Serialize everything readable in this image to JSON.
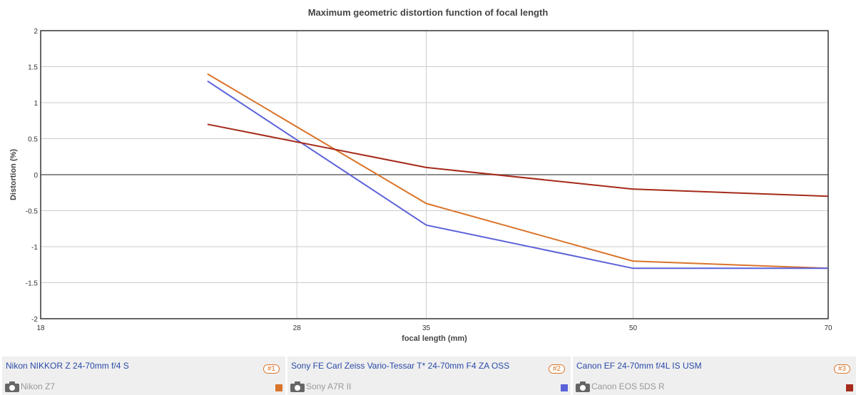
{
  "chart_data": {
    "type": "line",
    "title": "Maximum geometric distortion function of focal length",
    "xlabel": "focal length (mm)",
    "ylabel": "Distortion (%)",
    "xscale": "log",
    "xlim": [
      18,
      70
    ],
    "ylim": [
      -2,
      2
    ],
    "xticks": [
      18,
      28,
      35,
      50,
      70
    ],
    "yticks": [
      2,
      1.5,
      1,
      0.5,
      0,
      -0.5,
      -1,
      -1.5,
      -2
    ],
    "x": [
      24,
      35,
      50,
      70
    ],
    "grid": true,
    "series": [
      {
        "name": "Nikon NIKKOR Z 24-70mm f/4 S",
        "color": "#d9742a",
        "values": [
          1.4,
          -0.4,
          -1.2,
          -1.3
        ]
      },
      {
        "name": "Sony FE Carl Zeiss Vario-Tessar T* 24-70mm F4 ZA OSS",
        "color": "#5b62d9",
        "values": [
          1.3,
          -0.7,
          -1.3,
          -1.3
        ]
      },
      {
        "name": "Canon EF 24-70mm f/4L IS USM",
        "color": "#a52a1a",
        "values": [
          0.7,
          0.1,
          -0.2,
          -0.3
        ]
      }
    ]
  },
  "legend": [
    {
      "lens": "Nikon NIKKOR Z 24-70mm f/4 S",
      "rank": "#1",
      "camera": "Nikon Z7",
      "color": "#d9742a"
    },
    {
      "lens": "Sony FE Carl Zeiss Vario-Tessar T* 24-70mm F4 ZA OSS",
      "rank": "#2",
      "camera": "Sony A7R II",
      "color": "#5b62d9"
    },
    {
      "lens": "Canon EF 24-70mm f/4L IS USM",
      "rank": "#3",
      "camera": "Canon EOS 5DS R",
      "color": "#a52a1a"
    }
  ]
}
